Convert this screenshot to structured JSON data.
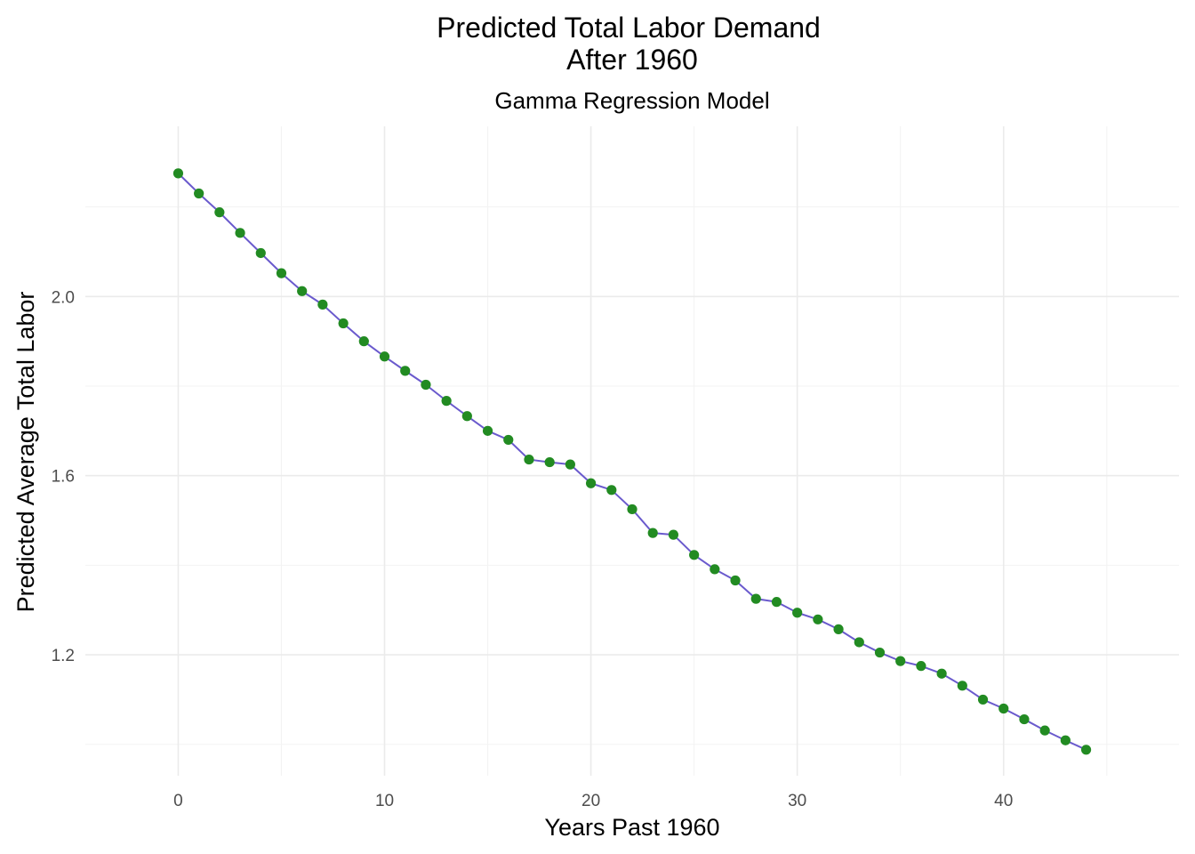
{
  "chart_data": {
    "type": "line",
    "title": "Predicted Total Labor Demand",
    "title_line2": "After 1960",
    "subtitle": "Gamma Regression Model",
    "xlabel": "Years Past 1960",
    "ylabel": "Predicted Average Total Labor",
    "xlim": [
      -4.5,
      48.5
    ],
    "ylim": [
      0.93,
      2.38
    ],
    "x_ticks": [
      0,
      10,
      20,
      30,
      40
    ],
    "x_tick_labels": [
      "0",
      "10",
      "20",
      "30",
      "40"
    ],
    "y_ticks": [
      1.2,
      1.6,
      2.0
    ],
    "y_tick_labels": [
      "1.2",
      "1.6",
      "2.0"
    ],
    "grid": true,
    "line_color": "#6a5acd",
    "point_color": "#228b22",
    "series": [
      {
        "x": [
          0,
          1,
          2,
          3,
          4,
          5,
          6,
          7,
          8,
          9,
          10,
          11,
          12,
          13,
          14,
          15,
          16,
          17,
          18,
          19,
          20,
          21,
          22,
          23,
          24,
          25,
          26,
          27,
          28,
          29,
          30,
          31,
          32,
          33,
          34,
          35,
          36,
          37,
          38,
          39,
          40,
          41,
          42,
          43,
          44
        ],
        "values": [
          2.275,
          2.23,
          2.188,
          2.142,
          2.097,
          2.052,
          2.012,
          1.982,
          1.94,
          1.9,
          1.866,
          1.834,
          1.803,
          1.767,
          1.733,
          1.7,
          1.68,
          1.636,
          1.63,
          1.625,
          1.583,
          1.568,
          1.525,
          1.472,
          1.468,
          1.423,
          1.391,
          1.366,
          1.325,
          1.318,
          1.294,
          1.279,
          1.257,
          1.228,
          1.205,
          1.186,
          1.175,
          1.158,
          1.131,
          1.1,
          1.08,
          1.056,
          1.031,
          1.009,
          0.988
        ]
      }
    ]
  }
}
